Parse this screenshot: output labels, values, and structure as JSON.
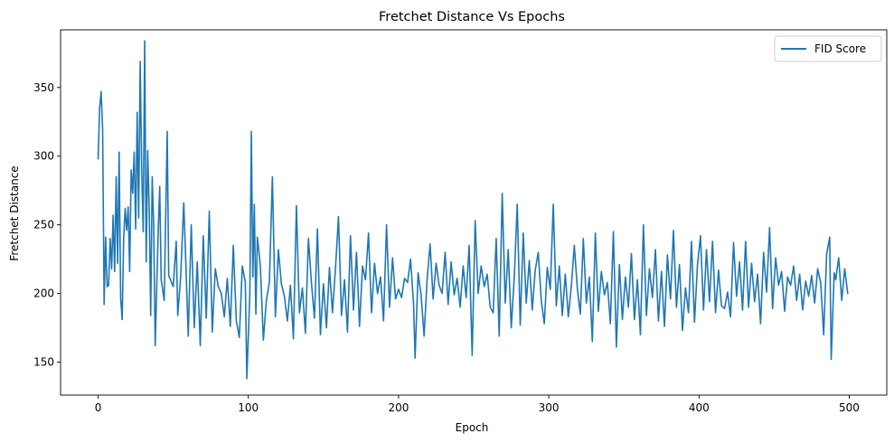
{
  "chart_data": {
    "type": "line",
    "title": "Fretchet Distance Vs Epochs",
    "xlabel": "Epoch",
    "ylabel": "Fretchet Distance",
    "xlim": [
      -25,
      525
    ],
    "ylim": [
      126,
      392
    ],
    "xticks": [
      0,
      100,
      200,
      300,
      400,
      500
    ],
    "yticks": [
      150,
      200,
      250,
      300,
      350
    ],
    "grid": false,
    "legend_position": "top-right",
    "series": [
      {
        "name": "FID Score",
        "color": "#1f77b4",
        "anchors": [
          [
            0,
            298
          ],
          [
            1,
            335
          ],
          [
            2,
            347
          ],
          [
            3,
            320
          ],
          [
            4,
            192
          ],
          [
            5,
            241
          ],
          [
            6,
            205
          ],
          [
            7,
            206
          ],
          [
            8,
            240
          ],
          [
            9,
            218
          ],
          [
            10,
            257
          ],
          [
            11,
            216
          ],
          [
            12,
            285
          ],
          [
            13,
            222
          ],
          [
            14,
            303
          ],
          [
            15,
            197
          ],
          [
            16,
            181
          ],
          [
            17,
            240
          ],
          [
            18,
            262
          ],
          [
            19,
            246
          ],
          [
            20,
            263
          ],
          [
            21,
            216
          ],
          [
            22,
            290
          ],
          [
            23,
            273
          ],
          [
            24,
            303
          ],
          [
            25,
            247
          ],
          [
            26,
            332
          ],
          [
            27,
            255
          ],
          [
            28,
            369
          ],
          [
            29,
            290
          ],
          [
            30,
            245
          ],
          [
            31,
            384
          ],
          [
            32,
            223
          ],
          [
            33,
            304
          ],
          [
            34,
            262
          ],
          [
            35,
            184
          ],
          [
            36,
            285
          ],
          [
            37,
            250
          ],
          [
            38,
            162
          ],
          [
            40,
            245
          ],
          [
            41,
            278
          ],
          [
            42,
            210
          ],
          [
            44,
            195
          ],
          [
            46,
            318
          ],
          [
            47,
            213
          ],
          [
            50,
            205
          ],
          [
            52,
            238
          ],
          [
            53,
            184
          ],
          [
            55,
            213
          ],
          [
            57,
            266
          ],
          [
            58,
            235
          ],
          [
            60,
            169
          ],
          [
            62,
            250
          ],
          [
            64,
            175
          ],
          [
            66,
            223
          ],
          [
            68,
            162
          ],
          [
            70,
            242
          ],
          [
            72,
            182
          ],
          [
            74,
            260
          ],
          [
            76,
            172
          ],
          [
            78,
            218
          ],
          [
            80,
            205
          ],
          [
            82,
            200
          ],
          [
            84,
            183
          ],
          [
            86,
            211
          ],
          [
            88,
            176
          ],
          [
            90,
            235
          ],
          [
            92,
            180
          ],
          [
            94,
            168
          ],
          [
            96,
            220
          ],
          [
            98,
            208
          ],
          [
            99,
            138
          ],
          [
            101,
            200
          ],
          [
            102,
            318
          ],
          [
            103,
            212
          ],
          [
            104,
            265
          ],
          [
            105,
            185
          ],
          [
            106,
            241
          ],
          [
            108,
            220
          ],
          [
            110,
            166
          ],
          [
            112,
            195
          ],
          [
            114,
            208
          ],
          [
            116,
            285
          ],
          [
            118,
            183
          ],
          [
            120,
            232
          ],
          [
            122,
            207
          ],
          [
            124,
            198
          ],
          [
            126,
            180
          ],
          [
            128,
            206
          ],
          [
            130,
            167
          ],
          [
            132,
            264
          ],
          [
            134,
            186
          ],
          [
            136,
            204
          ],
          [
            138,
            171
          ],
          [
            140,
            240
          ],
          [
            142,
            208
          ],
          [
            144,
            182
          ],
          [
            146,
            247
          ],
          [
            148,
            170
          ],
          [
            150,
            207
          ],
          [
            152,
            175
          ],
          [
            154,
            219
          ],
          [
            156,
            186
          ],
          [
            158,
            218
          ],
          [
            160,
            256
          ],
          [
            162,
            184
          ],
          [
            164,
            210
          ],
          [
            166,
            172
          ],
          [
            168,
            242
          ],
          [
            170,
            188
          ],
          [
            172,
            230
          ],
          [
            174,
            176
          ],
          [
            176,
            220
          ],
          [
            178,
            210
          ],
          [
            180,
            244
          ],
          [
            182,
            186
          ],
          [
            184,
            222
          ],
          [
            186,
            200
          ],
          [
            188,
            212
          ],
          [
            190,
            180
          ],
          [
            192,
            250
          ],
          [
            194,
            190
          ],
          [
            196,
            226
          ],
          [
            198,
            196
          ],
          [
            200,
            203
          ],
          [
            202,
            197
          ],
          [
            204,
            211
          ],
          [
            206,
            208
          ],
          [
            208,
            225
          ],
          [
            210,
            192
          ],
          [
            211,
            153
          ],
          [
            213,
            215
          ],
          [
            215,
            199
          ],
          [
            217,
            169
          ],
          [
            219,
            210
          ],
          [
            221,
            236
          ],
          [
            223,
            196
          ],
          [
            225,
            222
          ],
          [
            227,
            206
          ],
          [
            229,
            200
          ],
          [
            231,
            230
          ],
          [
            233,
            192
          ],
          [
            235,
            223
          ],
          [
            237,
            199
          ],
          [
            239,
            211
          ],
          [
            241,
            190
          ],
          [
            243,
            220
          ],
          [
            245,
            197
          ],
          [
            247,
            235
          ],
          [
            249,
            155
          ],
          [
            251,
            253
          ],
          [
            253,
            200
          ],
          [
            255,
            220
          ],
          [
            257,
            205
          ],
          [
            259,
            214
          ],
          [
            261,
            190
          ],
          [
            263,
            186
          ],
          [
            265,
            240
          ],
          [
            267,
            169
          ],
          [
            269,
            273
          ],
          [
            271,
            193
          ],
          [
            273,
            232
          ],
          [
            275,
            175
          ],
          [
            277,
            211
          ],
          [
            279,
            265
          ],
          [
            281,
            177
          ],
          [
            283,
            244
          ],
          [
            285,
            193
          ],
          [
            287,
            224
          ],
          [
            289,
            188
          ],
          [
            291,
            217
          ],
          [
            293,
            230
          ],
          [
            295,
            195
          ],
          [
            297,
            178
          ],
          [
            299,
            219
          ],
          [
            301,
            203
          ],
          [
            303,
            265
          ],
          [
            305,
            191
          ],
          [
            307,
            220
          ],
          [
            309,
            184
          ],
          [
            311,
            214
          ],
          [
            313,
            183
          ],
          [
            315,
            205
          ],
          [
            317,
            235
          ],
          [
            319,
            204
          ],
          [
            321,
            185
          ],
          [
            323,
            240
          ],
          [
            325,
            193
          ],
          [
            327,
            212
          ],
          [
            329,
            165
          ],
          [
            331,
            244
          ],
          [
            333,
            187
          ],
          [
            335,
            216
          ],
          [
            337,
            199
          ],
          [
            339,
            208
          ],
          [
            341,
            178
          ],
          [
            343,
            245
          ],
          [
            345,
            161
          ],
          [
            347,
            221
          ],
          [
            349,
            181
          ],
          [
            351,
            212
          ],
          [
            353,
            190
          ],
          [
            355,
            229
          ],
          [
            357,
            181
          ],
          [
            359,
            210
          ],
          [
            361,
            170
          ],
          [
            363,
            250
          ],
          [
            365,
            184
          ],
          [
            367,
            218
          ],
          [
            369,
            197
          ],
          [
            371,
            232
          ],
          [
            373,
            180
          ],
          [
            375,
            216
          ],
          [
            377,
            176
          ],
          [
            379,
            228
          ],
          [
            381,
            196
          ],
          [
            383,
            246
          ],
          [
            385,
            190
          ],
          [
            387,
            221
          ],
          [
            389,
            173
          ],
          [
            391,
            204
          ],
          [
            393,
            186
          ],
          [
            395,
            238
          ],
          [
            397,
            179
          ],
          [
            399,
            221
          ],
          [
            401,
            242
          ],
          [
            403,
            188
          ],
          [
            405,
            232
          ],
          [
            407,
            194
          ],
          [
            409,
            238
          ],
          [
            411,
            186
          ],
          [
            413,
            217
          ],
          [
            415,
            191
          ],
          [
            417,
            189
          ],
          [
            419,
            201
          ],
          [
            421,
            183
          ],
          [
            423,
            237
          ],
          [
            425,
            198
          ],
          [
            427,
            223
          ],
          [
            429,
            188
          ],
          [
            431,
            238
          ],
          [
            433,
            190
          ],
          [
            435,
            222
          ],
          [
            437,
            194
          ],
          [
            439,
            214
          ],
          [
            441,
            178
          ],
          [
            443,
            230
          ],
          [
            445,
            201
          ],
          [
            447,
            248
          ],
          [
            449,
            189
          ],
          [
            451,
            226
          ],
          [
            453,
            206
          ],
          [
            455,
            216
          ],
          [
            457,
            187
          ],
          [
            459,
            212
          ],
          [
            461,
            206
          ],
          [
            463,
            220
          ],
          [
            465,
            195
          ],
          [
            467,
            214
          ],
          [
            469,
            188
          ],
          [
            471,
            209
          ],
          [
            473,
            198
          ],
          [
            475,
            213
          ],
          [
            477,
            193
          ],
          [
            479,
            218
          ],
          [
            481,
            208
          ],
          [
            483,
            170
          ],
          [
            485,
            229
          ],
          [
            487,
            241
          ],
          [
            488,
            152
          ],
          [
            490,
            215
          ],
          [
            491,
            210
          ],
          [
            493,
            226
          ],
          [
            495,
            195
          ],
          [
            497,
            218
          ],
          [
            499,
            200
          ]
        ]
      }
    ]
  }
}
